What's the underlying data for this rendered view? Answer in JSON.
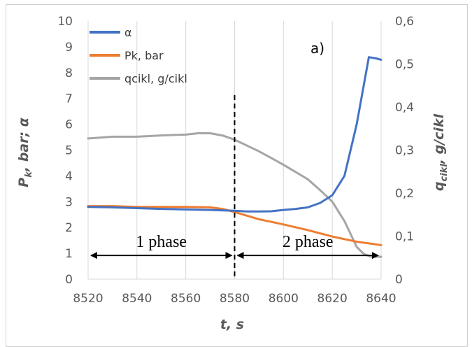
{
  "chart_data": {
    "type": "line",
    "panel_label": "a)",
    "xlabel": "t, s",
    "ylabel_left": "P_k, bar; α",
    "ylabel_right": "q_cikl, g/cikl",
    "xlim": [
      8520,
      8640
    ],
    "ylim_left": [
      0,
      10
    ],
    "ylim_right": [
      0,
      0.6
    ],
    "x_ticks": [
      "8520",
      "8540",
      "8560",
      "8580",
      "8600",
      "8620",
      "8640"
    ],
    "y_ticks_left": [
      "0",
      "1",
      "2",
      "3",
      "4",
      "5",
      "6",
      "7",
      "8",
      "9",
      "10"
    ],
    "y_ticks_right": [
      "0",
      "0,1",
      "0,2",
      "0,3",
      "0,4",
      "0,5",
      "0,6"
    ],
    "grid": "vertical",
    "legend_position": "top-left",
    "series": [
      {
        "name": "α",
        "axis": "left",
        "color": "#4472C4",
        "x": [
          8520,
          8530,
          8540,
          8550,
          8560,
          8570,
          8580,
          8585,
          8590,
          8595,
          8600,
          8605,
          8610,
          8615,
          8620,
          8625,
          8630,
          8635,
          8638,
          8640
        ],
        "y": [
          2.8,
          2.78,
          2.75,
          2.72,
          2.7,
          2.68,
          2.65,
          2.62,
          2.62,
          2.63,
          2.68,
          2.72,
          2.78,
          2.95,
          3.25,
          4.0,
          6.0,
          8.6,
          8.55,
          8.5
        ]
      },
      {
        "name": "Pk, bar",
        "axis": "left",
        "color": "#ED7D31",
        "x": [
          8520,
          8530,
          8540,
          8550,
          8560,
          8570,
          8575,
          8580,
          8590,
          8600,
          8610,
          8620,
          8630,
          8640
        ],
        "y": [
          2.83,
          2.83,
          2.8,
          2.8,
          2.8,
          2.78,
          2.72,
          2.6,
          2.32,
          2.12,
          1.9,
          1.65,
          1.45,
          1.32
        ]
      },
      {
        "name": "qcikl, g/cikl",
        "axis": "right",
        "color": "#A5A5A5",
        "x": [
          8520,
          8530,
          8540,
          8550,
          8560,
          8565,
          8570,
          8575,
          8580,
          8590,
          8600,
          8610,
          8615,
          8620,
          8625,
          8630,
          8633,
          8636,
          8640
        ],
        "y": [
          0.327,
          0.331,
          0.331,
          0.334,
          0.336,
          0.339,
          0.339,
          0.334,
          0.324,
          0.297,
          0.266,
          0.232,
          0.207,
          0.18,
          0.135,
          0.075,
          0.058,
          0.052,
          0.052
        ]
      }
    ],
    "annotations": [
      {
        "text": "1 phase",
        "x_from": 8520,
        "x_to": 8580,
        "y": 1.0
      },
      {
        "text": "2 phase",
        "x_from": 8580,
        "x_to": 8640,
        "y": 1.0
      }
    ],
    "divider_x": 8580
  }
}
